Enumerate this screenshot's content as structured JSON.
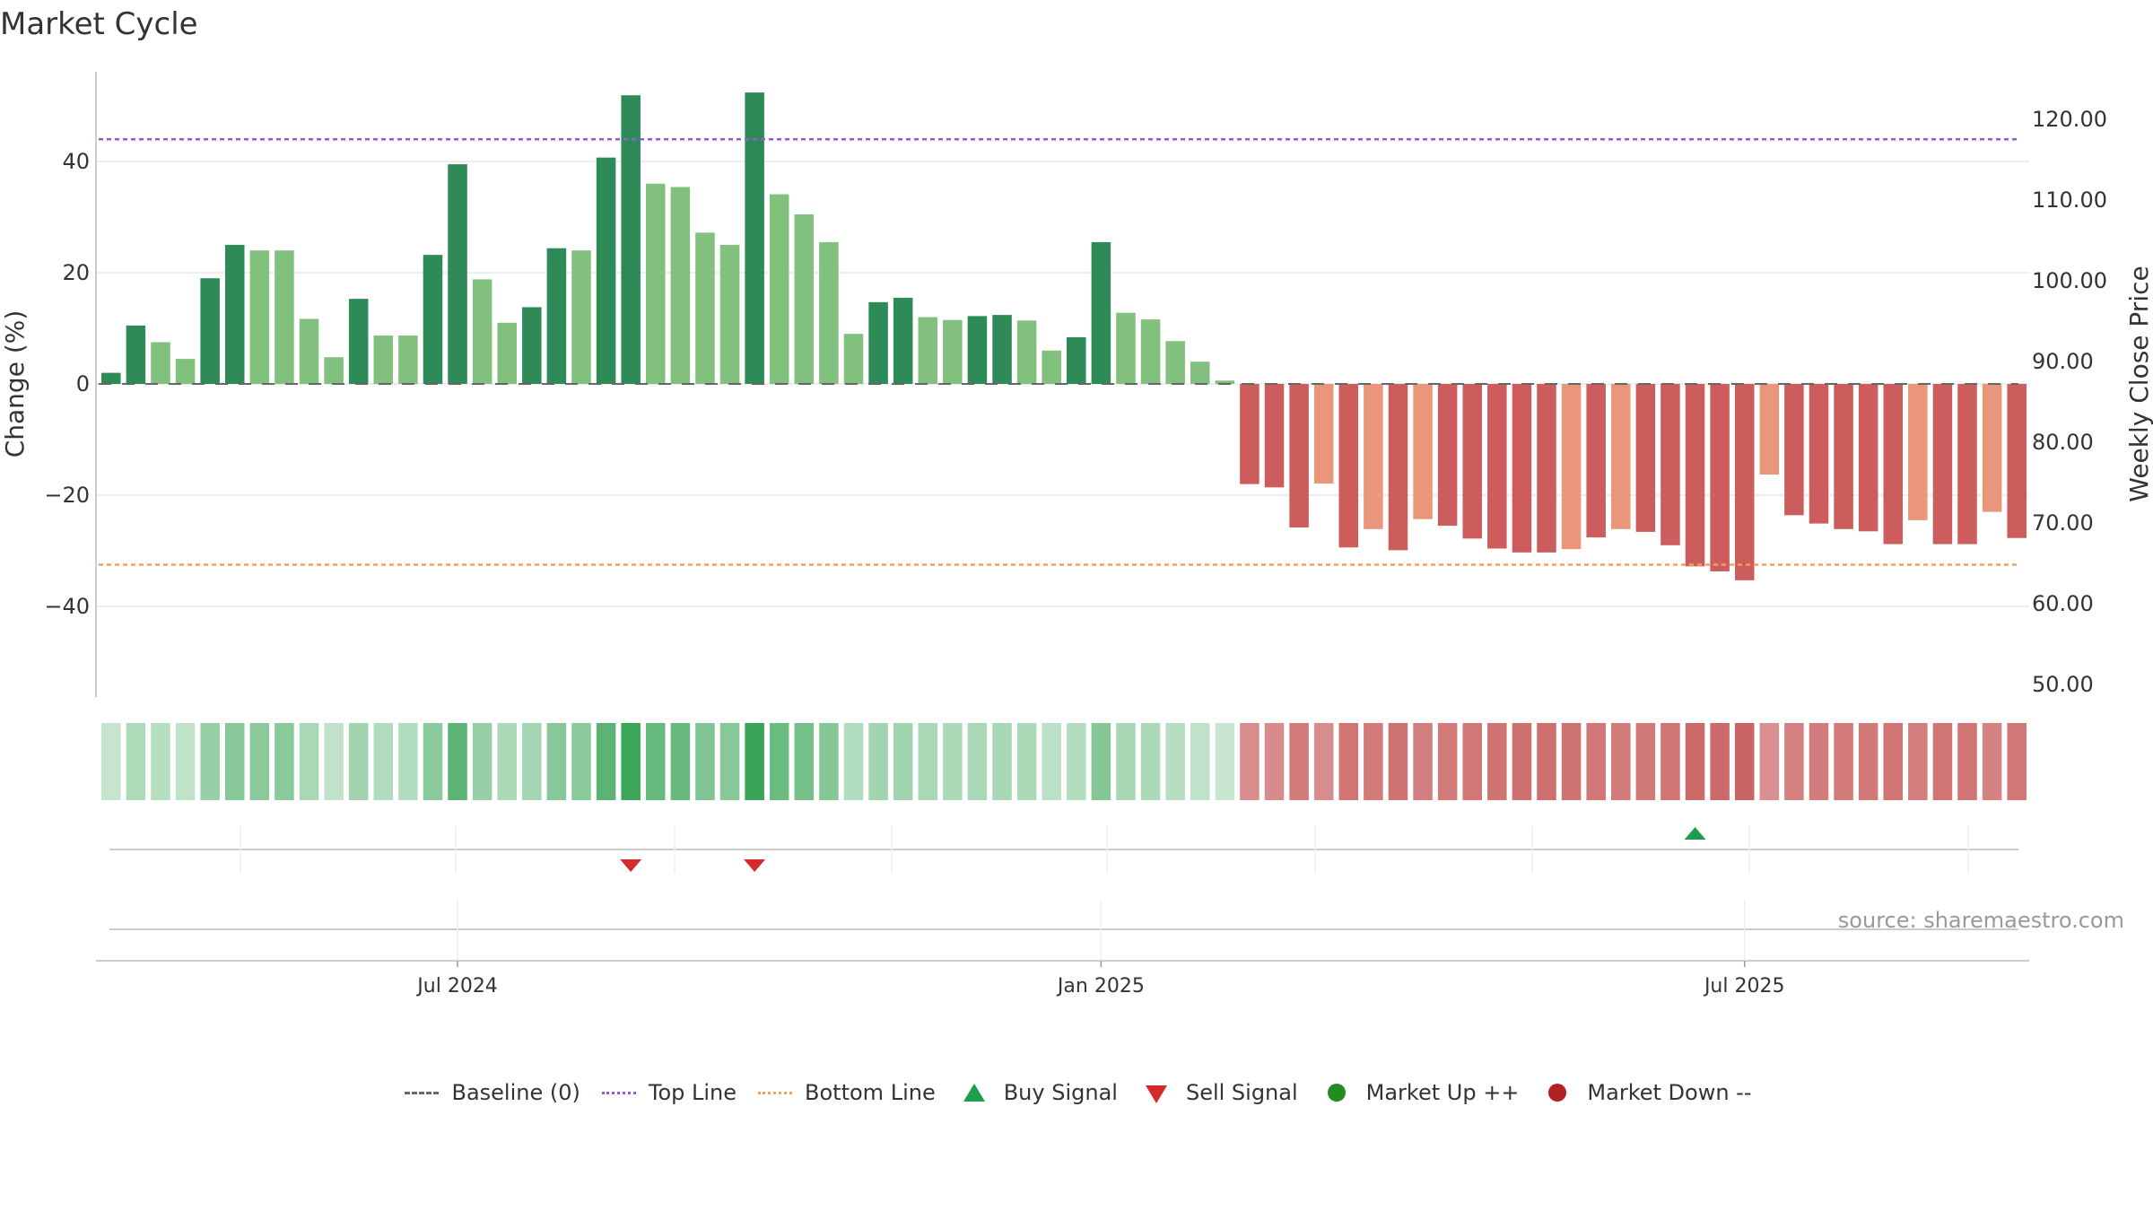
{
  "chart_data": {
    "type": "bar",
    "title": "Market Cycle",
    "ylabel_left": "Change (%)",
    "ylabel_right": "Weekly Close Price",
    "ylim_left": [
      -56,
      57
    ],
    "yticks_left": [
      40,
      20,
      0,
      -20,
      -40
    ],
    "ytick_labels_left": [
      "40",
      "20",
      "0",
      "−20",
      "−40"
    ],
    "yticks_right": [
      "120.00",
      "110.00",
      "100.00",
      "90.00",
      "80.00",
      "70.00",
      "60.00",
      "50.00"
    ],
    "top_line": 44,
    "bottom_line": -32.5,
    "baseline": 0,
    "x_tick_labels": [
      "Jul 2024",
      "Jan 2025",
      "Jul 2025"
    ],
    "x_tick_bar_index": [
      14,
      40,
      66
    ],
    "values": [
      2,
      10.5,
      7.5,
      4.5,
      19,
      25,
      24,
      24,
      11.7,
      4.8,
      15.3,
      8.7,
      8.7,
      23.2,
      39.5,
      18.8,
      11,
      13.8,
      24.4,
      24,
      40.7,
      51.9,
      36,
      35.4,
      27.2,
      25,
      52.4,
      34.1,
      30.5,
      25.5,
      9,
      14.7,
      15.5,
      12,
      11.5,
      12.2,
      12.4,
      11.4,
      6,
      8.4,
      25.5,
      12.8,
      11.6,
      7.7,
      4,
      0.6,
      -18,
      -18.6,
      -25.8,
      -17.9,
      -29.4,
      -26.1,
      -29.9,
      -24.3,
      -25.5,
      -27.8,
      -29.6,
      -30.3,
      -30.3,
      -29.7,
      -27.6,
      -26.1,
      -26.6,
      -29,
      -32.8,
      -33.7,
      -35.3,
      -16.3,
      -23.6,
      -25.1,
      -26.1,
      -26.5,
      -28.8,
      -24.5,
      -28.8,
      -28.8,
      -23,
      -27.7
    ],
    "light_bar_indices": [
      2,
      3,
      6,
      7,
      8,
      9,
      11,
      12,
      15,
      16,
      19,
      22,
      23,
      24,
      25,
      27,
      28,
      29,
      30,
      33,
      34,
      37,
      38,
      41,
      42,
      43,
      44,
      45,
      49,
      51,
      53,
      59,
      61,
      67,
      73,
      76
    ],
    "sell_signal_bar_index": [
      21,
      26
    ],
    "buy_signal_bar_index": [
      64
    ],
    "source_text": "source: sharemaestro.com",
    "colors": {
      "up_strong": "#2e8b57",
      "up_light": "#82c07e",
      "down_strong": "#cd5c5c",
      "down_light": "#e9967a",
      "top_line": "#9b59d0",
      "bottom_line": "#f0a060",
      "buy": "#1e9e4a",
      "sell": "#d42a2a"
    }
  },
  "legend": {
    "items": [
      {
        "label": "Baseline (0)",
        "color": "#666666"
      },
      {
        "label": "Top Line",
        "color": "#9b59d0"
      },
      {
        "label": "Bottom Line",
        "color": "#f0a060"
      },
      {
        "label": "Buy Signal",
        "color": "#1e9e4a"
      },
      {
        "label": "Sell Signal",
        "color": "#d42a2a"
      },
      {
        "label": "Market Up ++",
        "color": "#228b22"
      },
      {
        "label": "Market Down --",
        "color": "#b22222"
      }
    ]
  }
}
